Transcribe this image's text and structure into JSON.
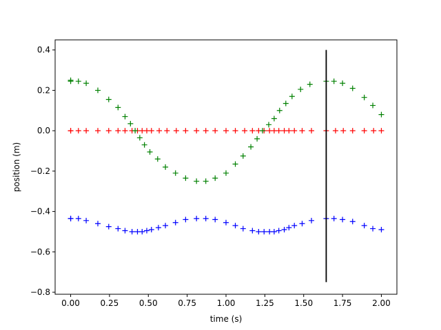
{
  "chart_data": {
    "type": "scatter",
    "title": "",
    "xlabel": "time (s)",
    "ylabel": "position (m)",
    "xlim": [
      -0.1,
      2.1
    ],
    "ylim": [
      -0.81,
      0.45
    ],
    "x_ticks": [
      0.0,
      0.25,
      0.5,
      0.75,
      1.0,
      1.25,
      1.5,
      1.75,
      2.0
    ],
    "x_tick_labels": [
      "0.00",
      "0.25",
      "0.50",
      "0.75",
      "1.00",
      "1.25",
      "1.50",
      "1.75",
      "2.00"
    ],
    "y_ticks": [
      -0.8,
      -0.6,
      -0.4,
      -0.2,
      0.0,
      0.2,
      0.4
    ],
    "y_tick_labels": [
      "−0.8",
      "−0.6",
      "−0.4",
      "−0.2",
      "0.0",
      "0.2",
      "0.4"
    ],
    "grid": false,
    "marker": "+",
    "series": [
      {
        "color": "#ff0000",
        "x": [
          0.0,
          0.0,
          0.05,
          0.1,
          0.175,
          0.245,
          0.305,
          0.35,
          0.395,
          0.43,
          0.46,
          0.49,
          0.52,
          0.57,
          0.62,
          0.68,
          0.74,
          0.81,
          0.87,
          0.93,
          1.0,
          1.06,
          1.12,
          1.17,
          1.21,
          1.245,
          1.28,
          1.31,
          1.34,
          1.375,
          1.405,
          1.44,
          1.49,
          1.55,
          1.645,
          1.705,
          1.755,
          1.815,
          1.89,
          1.95,
          2.0
        ],
        "y": [
          0.0,
          0.0,
          0.0,
          0.0,
          0.0,
          0.0,
          0.0,
          0.0,
          0.0,
          0.0,
          0.0,
          0.0,
          0.0,
          0.0,
          0.0,
          0.0,
          0.0,
          0.0,
          0.0,
          0.0,
          0.0,
          0.0,
          0.0,
          0.0,
          0.0,
          0.0,
          0.0,
          0.0,
          0.0,
          0.0,
          0.0,
          0.0,
          0.0,
          0.0,
          0.0,
          0.0,
          0.0,
          0.0,
          0.0,
          0.0,
          0.0
        ]
      },
      {
        "color": "#008000",
        "x": [
          0.0,
          0.0,
          0.05,
          0.1,
          0.175,
          0.245,
          0.305,
          0.35,
          0.385,
          0.415,
          0.445,
          0.475,
          0.51,
          0.56,
          0.61,
          0.675,
          0.74,
          0.81,
          0.87,
          0.93,
          1.0,
          1.06,
          1.11,
          1.16,
          1.2,
          1.235,
          1.275,
          1.31,
          1.345,
          1.385,
          1.425,
          1.48,
          1.54,
          1.645,
          1.695,
          1.75,
          1.815,
          1.89,
          1.945,
          2.0
        ],
        "y": [
          0.25,
          0.245,
          0.245,
          0.235,
          0.2,
          0.155,
          0.115,
          0.07,
          0.035,
          0.0,
          -0.035,
          -0.07,
          -0.105,
          -0.14,
          -0.18,
          -0.21,
          -0.235,
          -0.25,
          -0.25,
          -0.235,
          -0.21,
          -0.165,
          -0.125,
          -0.08,
          -0.04,
          0.0,
          0.03,
          0.06,
          0.1,
          0.135,
          0.17,
          0.205,
          0.23,
          0.245,
          0.245,
          0.235,
          0.21,
          0.165,
          0.125,
          0.08
        ]
      },
      {
        "color": "#0000ff",
        "x": [
          0.0,
          0.0,
          0.05,
          0.1,
          0.175,
          0.245,
          0.305,
          0.35,
          0.395,
          0.43,
          0.46,
          0.49,
          0.52,
          0.565,
          0.61,
          0.675,
          0.74,
          0.81,
          0.87,
          0.93,
          1.0,
          1.06,
          1.11,
          1.17,
          1.21,
          1.245,
          1.28,
          1.31,
          1.34,
          1.375,
          1.405,
          1.44,
          1.49,
          1.55,
          1.645,
          1.695,
          1.75,
          1.815,
          1.89,
          1.945,
          2.0
        ],
        "y": [
          -0.435,
          -0.435,
          -0.435,
          -0.445,
          -0.46,
          -0.475,
          -0.485,
          -0.495,
          -0.5,
          -0.5,
          -0.5,
          -0.495,
          -0.49,
          -0.48,
          -0.47,
          -0.455,
          -0.44,
          -0.435,
          -0.435,
          -0.44,
          -0.455,
          -0.47,
          -0.485,
          -0.495,
          -0.5,
          -0.5,
          -0.5,
          -0.5,
          -0.495,
          -0.49,
          -0.48,
          -0.47,
          -0.46,
          -0.445,
          -0.435,
          -0.435,
          -0.44,
          -0.45,
          -0.47,
          -0.485,
          -0.49
        ]
      }
    ],
    "annotations": [
      {
        "type": "vertical-line",
        "color": "#000000",
        "x": 1.645,
        "y_range": [
          -0.75,
          0.4
        ]
      }
    ]
  }
}
